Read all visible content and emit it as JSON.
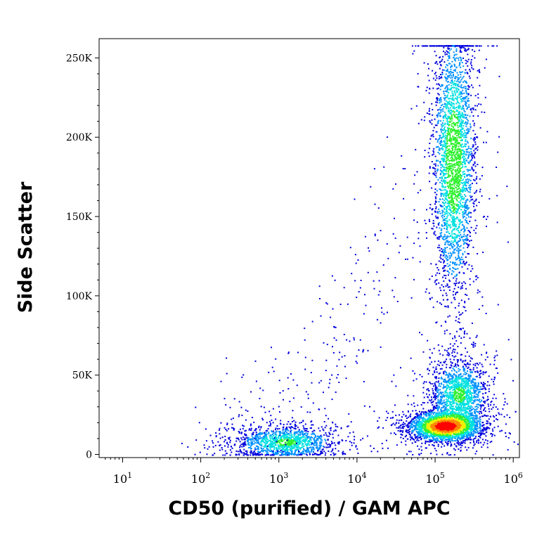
{
  "chart_data": {
    "type": "scatter",
    "title": "",
    "xlabel": "CD50 (purified) / GAM APC",
    "ylabel": "Side Scatter",
    "x_scale": "log",
    "xlim": [
      5,
      1200000
    ],
    "ylim": [
      -2000,
      262144
    ],
    "grid": false,
    "legend": "none",
    "x_ticks": [
      {
        "value": 10,
        "base": "10",
        "exp": "1"
      },
      {
        "value": 100,
        "base": "10",
        "exp": "2"
      },
      {
        "value": 1000,
        "base": "10",
        "exp": "3"
      },
      {
        "value": 10000,
        "base": "10",
        "exp": "4"
      },
      {
        "value": 100000,
        "base": "10",
        "exp": "5"
      },
      {
        "value": 1000000,
        "base": "10",
        "exp": "6"
      }
    ],
    "y_ticks": [
      {
        "value": 0,
        "label": "0"
      },
      {
        "value": 50000,
        "label": "50K"
      },
      {
        "value": 100000,
        "label": "100K"
      },
      {
        "value": 150000,
        "label": "150K"
      },
      {
        "value": 200000,
        "label": "200K"
      },
      {
        "value": 250000,
        "label": "250K"
      }
    ],
    "populations": [
      {
        "x_center": 130000,
        "y_center": 18000,
        "x_spread_log": 0.22,
        "y_spread": 4500,
        "density": 1.0
      },
      {
        "x_center": 200000,
        "y_center": 38000,
        "x_spread_log": 0.18,
        "y_spread": 11000,
        "density": 0.45
      },
      {
        "x_center": 170000,
        "y_center": 185000,
        "x_spread_log": 0.13,
        "y_spread": 42000,
        "density": 0.55
      },
      {
        "x_center": 1200,
        "y_center": 8000,
        "x_spread_log": 0.32,
        "y_spread": 5000,
        "density": 0.45
      }
    ],
    "colorscale": [
      "#0000dd",
      "#0090ff",
      "#00e0e0",
      "#30f030",
      "#f0f000",
      "#ff8800",
      "#ff0000"
    ]
  }
}
